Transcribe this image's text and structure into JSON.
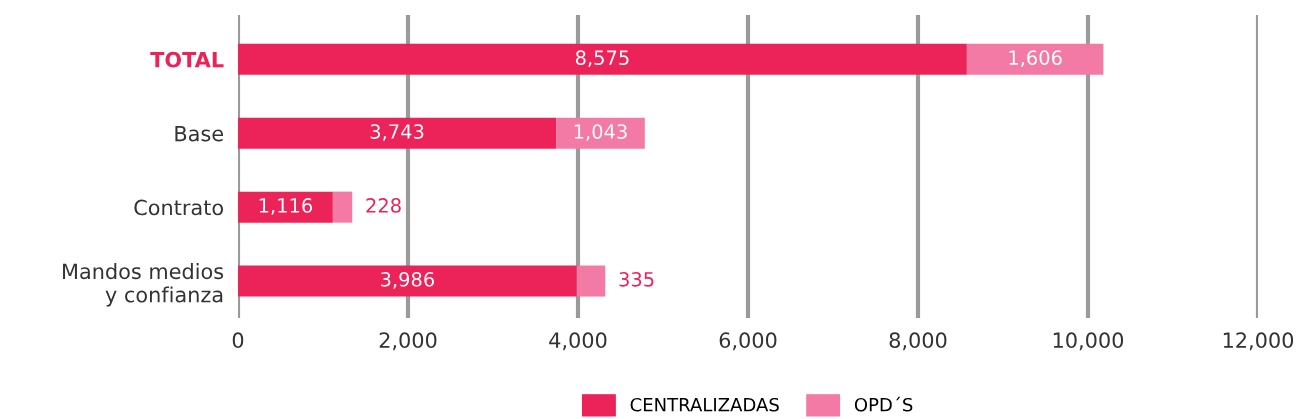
{
  "chart_data": {
    "type": "bar",
    "orientation": "horizontal",
    "stacked": true,
    "categories": [
      "TOTAL",
      "Base",
      "Contrato",
      "Mandos medios\ny confianza"
    ],
    "series": [
      {
        "name": "CENTRALIZADAS",
        "color": "#ec2358",
        "values": [
          8575,
          3743,
          1116,
          3986
        ],
        "value_labels": [
          "8,575",
          "3,743",
          "1,116",
          "3,986"
        ]
      },
      {
        "name": "OPD´S",
        "color": "#f27aa4",
        "values": [
          1606,
          1043,
          228,
          335
        ],
        "value_labels": [
          "1,606",
          "1,043",
          "228",
          "335"
        ]
      }
    ],
    "xlim": [
      0,
      12000
    ],
    "xticks": [
      {
        "value": 0,
        "label": "0"
      },
      {
        "value": 2000,
        "label": "2,000"
      },
      {
        "value": 4000,
        "label": "4,000"
      },
      {
        "value": 6000,
        "label": "6,000"
      },
      {
        "value": 8000,
        "label": "8,000"
      },
      {
        "value": 10000,
        "label": "10,000"
      },
      {
        "value": 12000,
        "label": "12,000"
      }
    ],
    "grid": "x",
    "legend": "bottom"
  }
}
